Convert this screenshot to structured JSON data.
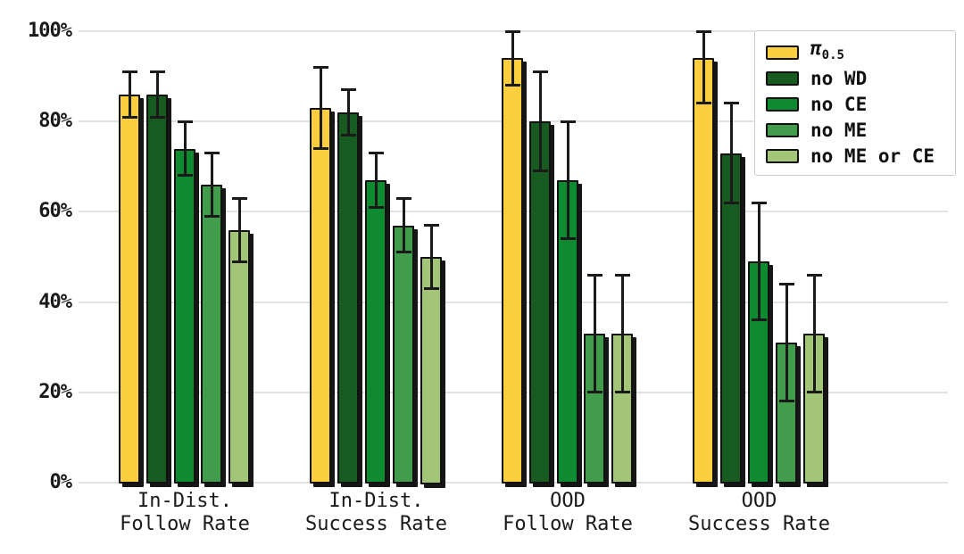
{
  "figure": {
    "background": "#ffffff",
    "gridline_color": "#e2e2e2",
    "bar_edge_color": "#111111",
    "error_bar_color": "#1a1a1a",
    "text_color": "#1a1a1a"
  },
  "chart_data": {
    "type": "bar",
    "title": "",
    "xlabel": "",
    "ylabel": "",
    "ylim": [
      0,
      100
    ],
    "grid": "horizontal",
    "legend_position": "upper right",
    "yticks": [
      0,
      20,
      40,
      60,
      80,
      100
    ],
    "ytick_labels": [
      "0%",
      "20%",
      "40%",
      "60%",
      "80%",
      "100%"
    ],
    "categories": [
      [
        "In-Dist.",
        "Follow Rate"
      ],
      [
        "In-Dist.",
        "Success Rate"
      ],
      [
        "OOD",
        "Follow Rate"
      ],
      [
        "OOD",
        "Success Rate"
      ]
    ],
    "series": [
      {
        "id": "pi-0-5",
        "name": "π0.5",
        "label_main": "π",
        "label_sub": "0.5",
        "color": "#FBCE3D",
        "values": [
          86,
          83,
          94,
          94
        ],
        "err_low": [
          81,
          74,
          88,
          84
        ],
        "err_high": [
          91,
          92,
          100,
          100
        ]
      },
      {
        "id": "no-wd",
        "name": "no WD",
        "label_main": "no WD",
        "label_sub": "",
        "color": "#175B21",
        "values": [
          86,
          82,
          80,
          73
        ],
        "err_low": [
          81,
          77,
          69,
          62
        ],
        "err_high": [
          91,
          87,
          91,
          84
        ]
      },
      {
        "id": "no-ce",
        "name": "no CE",
        "label_main": "no CE",
        "label_sub": "",
        "color": "#0E8A30",
        "values": [
          74,
          67,
          67,
          49
        ],
        "err_low": [
          68,
          61,
          54,
          36
        ],
        "err_high": [
          80,
          73,
          80,
          62
        ]
      },
      {
        "id": "no-me",
        "name": "no ME",
        "label_main": "no ME",
        "label_sub": "",
        "color": "#419C4B",
        "values": [
          66,
          57,
          33,
          31
        ],
        "err_low": [
          59,
          51,
          20,
          18
        ],
        "err_high": [
          73,
          63,
          46,
          44
        ]
      },
      {
        "id": "no-me-or-ce",
        "name": "no ME or CE",
        "label_main": "no ME or CE",
        "label_sub": "",
        "color": "#A3C577",
        "values": [
          56,
          50,
          33,
          33
        ],
        "err_low": [
          49,
          43,
          20,
          20
        ],
        "err_high": [
          63,
          57,
          46,
          46
        ]
      }
    ]
  }
}
